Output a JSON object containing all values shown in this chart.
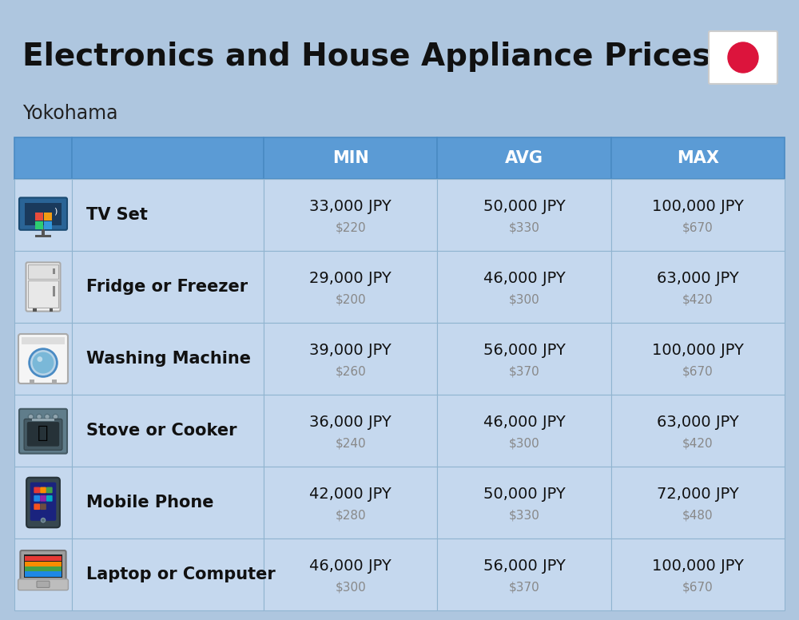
{
  "title": "Electronics and House Appliance Prices",
  "subtitle": "Yokohama",
  "background_color": "#aec6df",
  "header_color": "#5b9bd5",
  "header_text_color": "#ffffff",
  "row_bg": "#c5d8ee",
  "cell_line_color": "#90b4d0",
  "columns": [
    "MIN",
    "AVG",
    "MAX"
  ],
  "items": [
    {
      "name": "TV Set",
      "min_jpy": "33,000 JPY",
      "min_usd": "$220",
      "avg_jpy": "50,000 JPY",
      "avg_usd": "$330",
      "max_jpy": "100,000 JPY",
      "max_usd": "$670"
    },
    {
      "name": "Fridge or Freezer",
      "min_jpy": "29,000 JPY",
      "min_usd": "$200",
      "avg_jpy": "46,000 JPY",
      "avg_usd": "$300",
      "max_jpy": "63,000 JPY",
      "max_usd": "$420"
    },
    {
      "name": "Washing Machine",
      "min_jpy": "39,000 JPY",
      "min_usd": "$260",
      "avg_jpy": "56,000 JPY",
      "avg_usd": "$370",
      "max_jpy": "100,000 JPY",
      "max_usd": "$670"
    },
    {
      "name": "Stove or Cooker",
      "min_jpy": "36,000 JPY",
      "min_usd": "$240",
      "avg_jpy": "46,000 JPY",
      "avg_usd": "$300",
      "max_jpy": "63,000 JPY",
      "max_usd": "$420"
    },
    {
      "name": "Mobile Phone",
      "min_jpy": "42,000 JPY",
      "min_usd": "$280",
      "avg_jpy": "50,000 JPY",
      "avg_usd": "$330",
      "max_jpy": "72,000 JPY",
      "max_usd": "$480"
    },
    {
      "name": "Laptop or Computer",
      "min_jpy": "46,000 JPY",
      "min_usd": "$300",
      "avg_jpy": "56,000 JPY",
      "avg_usd": "$370",
      "max_jpy": "100,000 JPY",
      "max_usd": "$670"
    }
  ],
  "title_fontsize": 28,
  "subtitle_fontsize": 17,
  "header_fontsize": 15,
  "item_name_fontsize": 15,
  "value_fontsize": 14,
  "usd_fontsize": 11
}
